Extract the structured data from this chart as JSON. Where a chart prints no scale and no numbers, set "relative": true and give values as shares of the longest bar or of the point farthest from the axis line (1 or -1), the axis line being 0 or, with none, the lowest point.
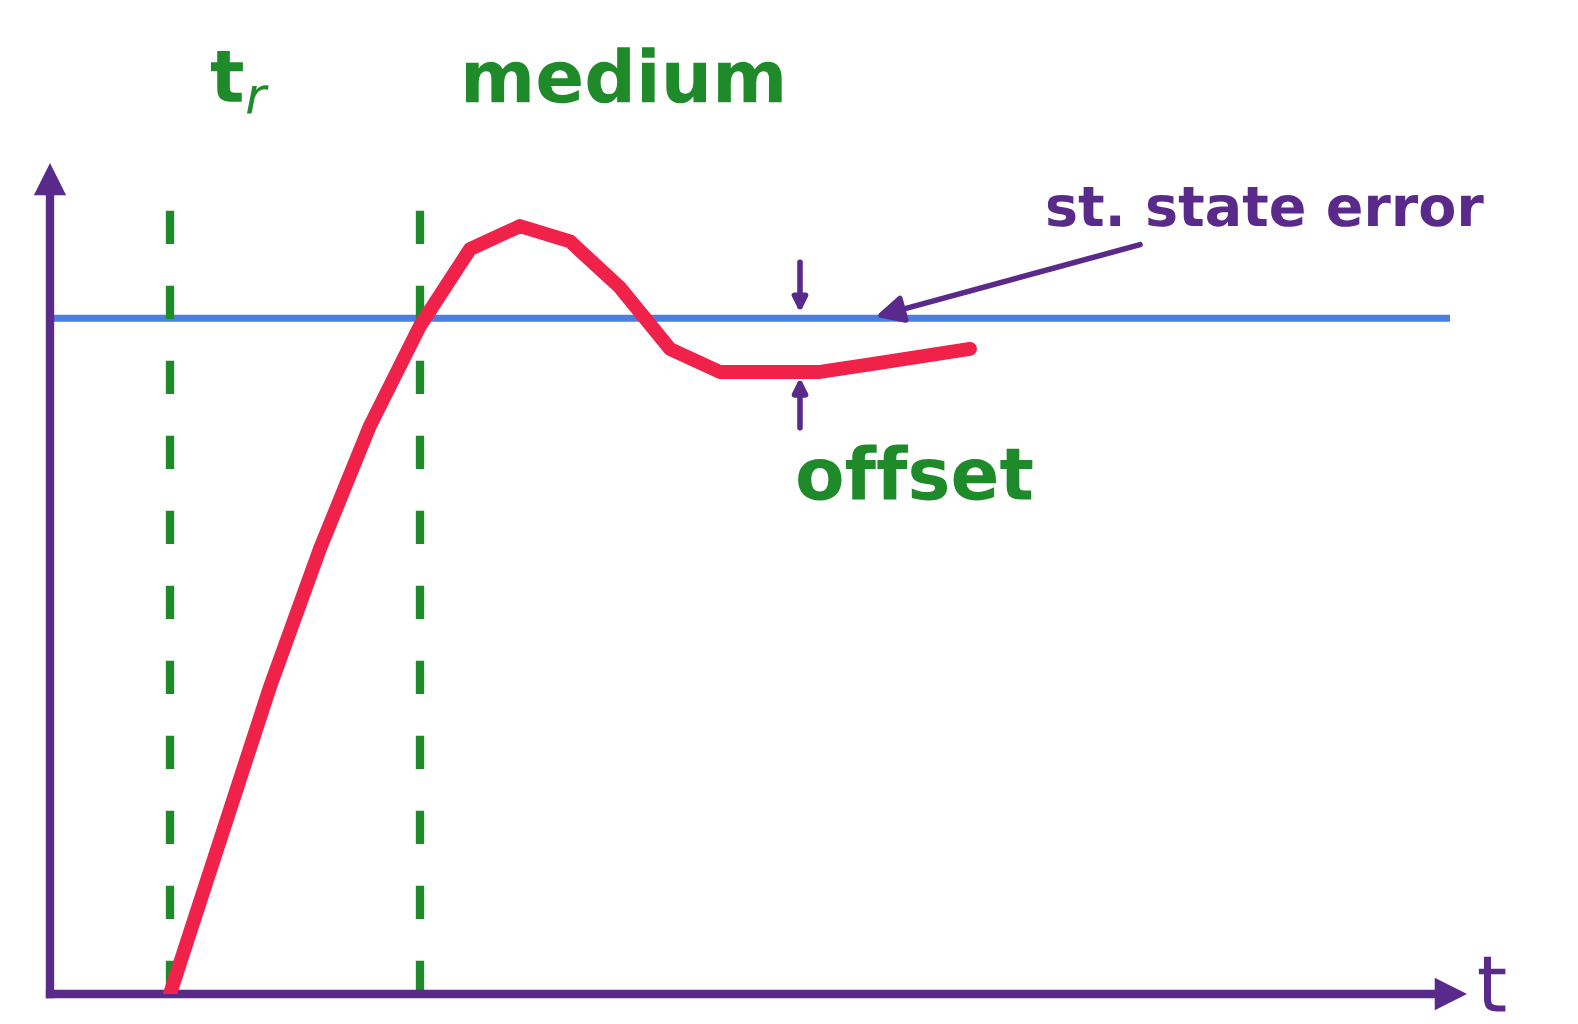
{
  "chart_data": {
    "type": "line",
    "relative": true,
    "categories": [
      null,
      null,
      null,
      null,
      null,
      null,
      null,
      null,
      null,
      null,
      null,
      null,
      null,
      null,
      null,
      null,
      null
    ],
    "series": [
      {
        "color": "#f0224a",
        "values": [
          0,
          0.2,
          0.4,
          0.58,
          0.74,
          0.87,
          0.97,
          1.0,
          0.98,
          0.92,
          0.84,
          0.81,
          0.81,
          0.81,
          0.82,
          0.83,
          0.84
        ]
      }
    ],
    "ref_lines": [
      {
        "axis": "y",
        "value": 0.88,
        "color": "#4a7fe0",
        "line_style": "solid"
      }
    ],
    "annotations": [
      "t$_{r}$",
      "medium",
      "st. state error",
      "offset",
      "t"
    ],
    "line_style": "solid",
    "marker": "none",
    "legend": false
  }
}
